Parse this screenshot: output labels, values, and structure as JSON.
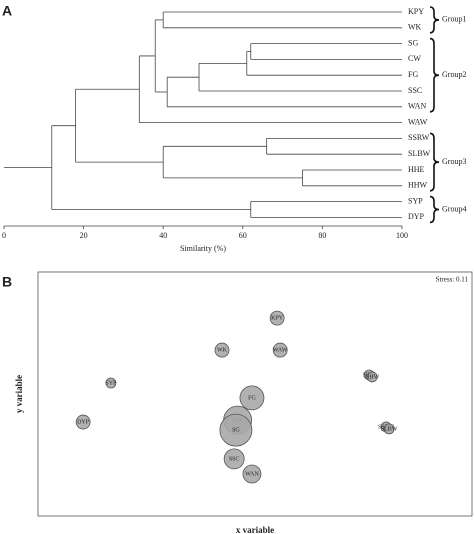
{
  "chart_data": [
    {
      "type": "dendrogram",
      "panel": "A",
      "xlabel": "Similarity (%)",
      "xlim": [
        0,
        100
      ],
      "xticks": [
        0,
        20,
        40,
        60,
        80,
        100
      ],
      "tree": {
        "value": 12,
        "children": [
          {
            "value": 18,
            "children": [
              {
                "value": 34,
                "children": [
                  {
                    "value": 38,
                    "children": [
                      {
                        "value": 40,
                        "children": [
                          {
                            "label": "KPY"
                          },
                          {
                            "label": "WK"
                          }
                        ]
                      },
                      {
                        "value": 41,
                        "children": [
                          {
                            "value": 49,
                            "children": [
                              {
                                "value": 61,
                                "children": [
                                  {
                                    "value": 62,
                                    "children": [
                                      {
                                        "label": "SG"
                                      },
                                      {
                                        "label": "CW"
                                      }
                                    ]
                                  },
                                  {
                                    "label": "FG"
                                  }
                                ]
                              },
                              {
                                "label": "SSC"
                              }
                            ]
                          },
                          {
                            "label": "WAN"
                          }
                        ]
                      }
                    ]
                  },
                  {
                    "label": "WAW"
                  }
                ]
              },
              {
                "value": 40,
                "children": [
                  {
                    "value": 66,
                    "children": [
                      {
                        "label": "SSRW"
                      },
                      {
                        "label": "SLBW"
                      }
                    ]
                  },
                  {
                    "value": 75,
                    "children": [
                      {
                        "label": "HHE"
                      },
                      {
                        "label": "HHW"
                      }
                    ]
                  }
                ]
              }
            ]
          },
          {
            "value": 62,
            "children": [
              {
                "label": "SYP"
              },
              {
                "label": "DYP"
              }
            ]
          }
        ]
      },
      "groups": [
        {
          "label": "Group1",
          "first": 0,
          "last": 1
        },
        {
          "label": "Group2",
          "first": 2,
          "last": 6
        },
        {
          "label": "Group3",
          "first": 8,
          "last": 11
        },
        {
          "label": "Group4",
          "first": 12,
          "last": 13
        }
      ]
    },
    {
      "type": "bubble",
      "panel": "B",
      "xlabel": "x variable",
      "ylabel": "y variable",
      "annotation": "Stress: 0.11",
      "xlim": [
        0,
        100
      ],
      "ylim": [
        0,
        100
      ],
      "color": "#a9a9a9",
      "labels": [
        "KPY",
        "WK",
        "WAW",
        "SYP",
        "FG",
        "CW",
        "SG",
        "DYP",
        "SSC",
        "WAN",
        "HHE",
        "HHW",
        "SSRW",
        "SLBW"
      ],
      "x": [
        55.1,
        42.4,
        55.8,
        16.8,
        49.3,
        46.0,
        45.6,
        10.4,
        45.2,
        49.3,
        76.3,
        77.0,
        80.2,
        80.9
      ],
      "y": [
        81.1,
        68.0,
        68.0,
        54.5,
        48.4,
        39.3,
        35.2,
        38.5,
        23.4,
        17.2,
        57.8,
        57.0,
        36.5,
        35.7
      ],
      "sizes": [
        7,
        7,
        7,
        5,
        12,
        14,
        16,
        7,
        10,
        9,
        5,
        5,
        5,
        5
      ]
    }
  ]
}
